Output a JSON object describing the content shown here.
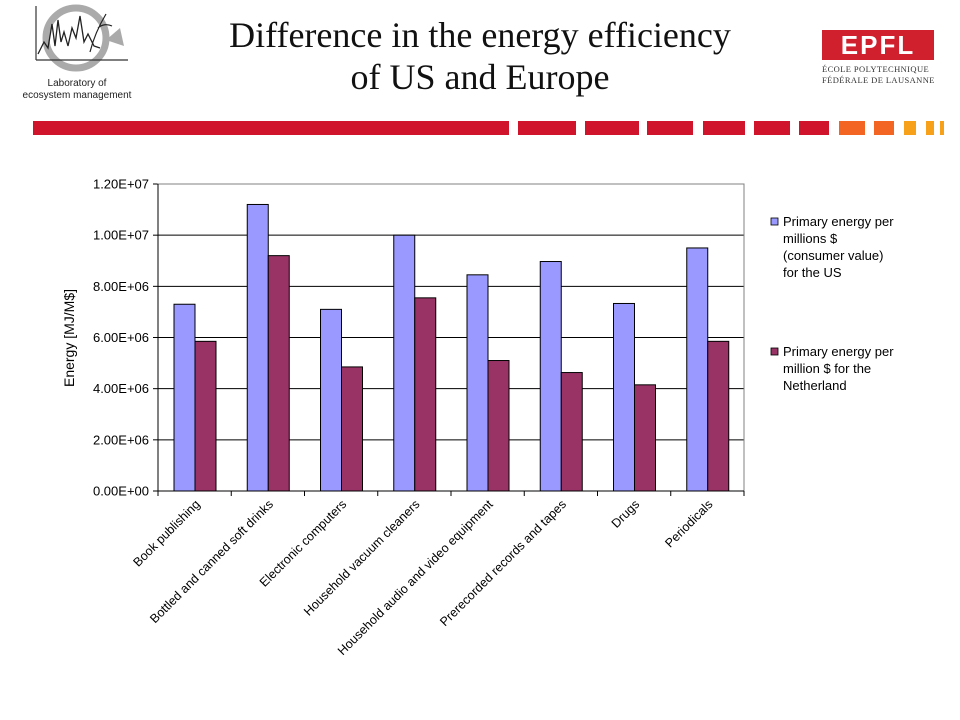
{
  "header": {
    "title_line1": "Difference in the energy efficiency",
    "title_line2": "of US and Europe",
    "lab_text_line1": "Laboratory of",
    "lab_text_line2": "ecosystem management",
    "epfl_mark": "EPFL",
    "epfl_line1": "ÉCOLE POLYTECHNIQUE",
    "epfl_line2": "FÉDÉRALE DE LAUSANNE",
    "epfl_color": "#d0202e",
    "stripe_colors": [
      "#d0142c",
      "#f26522",
      "#f7a11a"
    ]
  },
  "chart_data": {
    "type": "bar",
    "ylabel": "Energy [MJ/M$]",
    "xlabel": "",
    "ylim": [
      0,
      12000000
    ],
    "y_ticks": [
      "0.00E+00",
      "2.00E+06",
      "4.00E+06",
      "6.00E+06",
      "8.00E+06",
      "1.00E+07",
      "1.20E+07"
    ],
    "grid": true,
    "legend_position": "right",
    "categories": [
      "Book publishing",
      "Bottled and canned soft drinks",
      "Electronic computers",
      "Household vacuum cleaners",
      "Household audio and video equipment",
      "Prerecorded records and tapes",
      "Drugs",
      "Periodicals"
    ],
    "series": [
      {
        "name": "Primary energy per millions $ (consumer value) for the US",
        "legend_lines": [
          "Primary energy per",
          "millions $",
          "(consumer value)",
          "for the US"
        ],
        "color": "#9999ff",
        "values": [
          7300000,
          11200000,
          7100000,
          10000000,
          8450000,
          8970000,
          7330000,
          9500000
        ]
      },
      {
        "name": "Primary energy per million $ for the Netherland",
        "legend_lines": [
          "Primary energy per",
          "million $ for the",
          "Netherland"
        ],
        "color": "#993366",
        "values": [
          5850000,
          9200000,
          4850000,
          7550000,
          5100000,
          4630000,
          4150000,
          5850000
        ]
      }
    ]
  }
}
